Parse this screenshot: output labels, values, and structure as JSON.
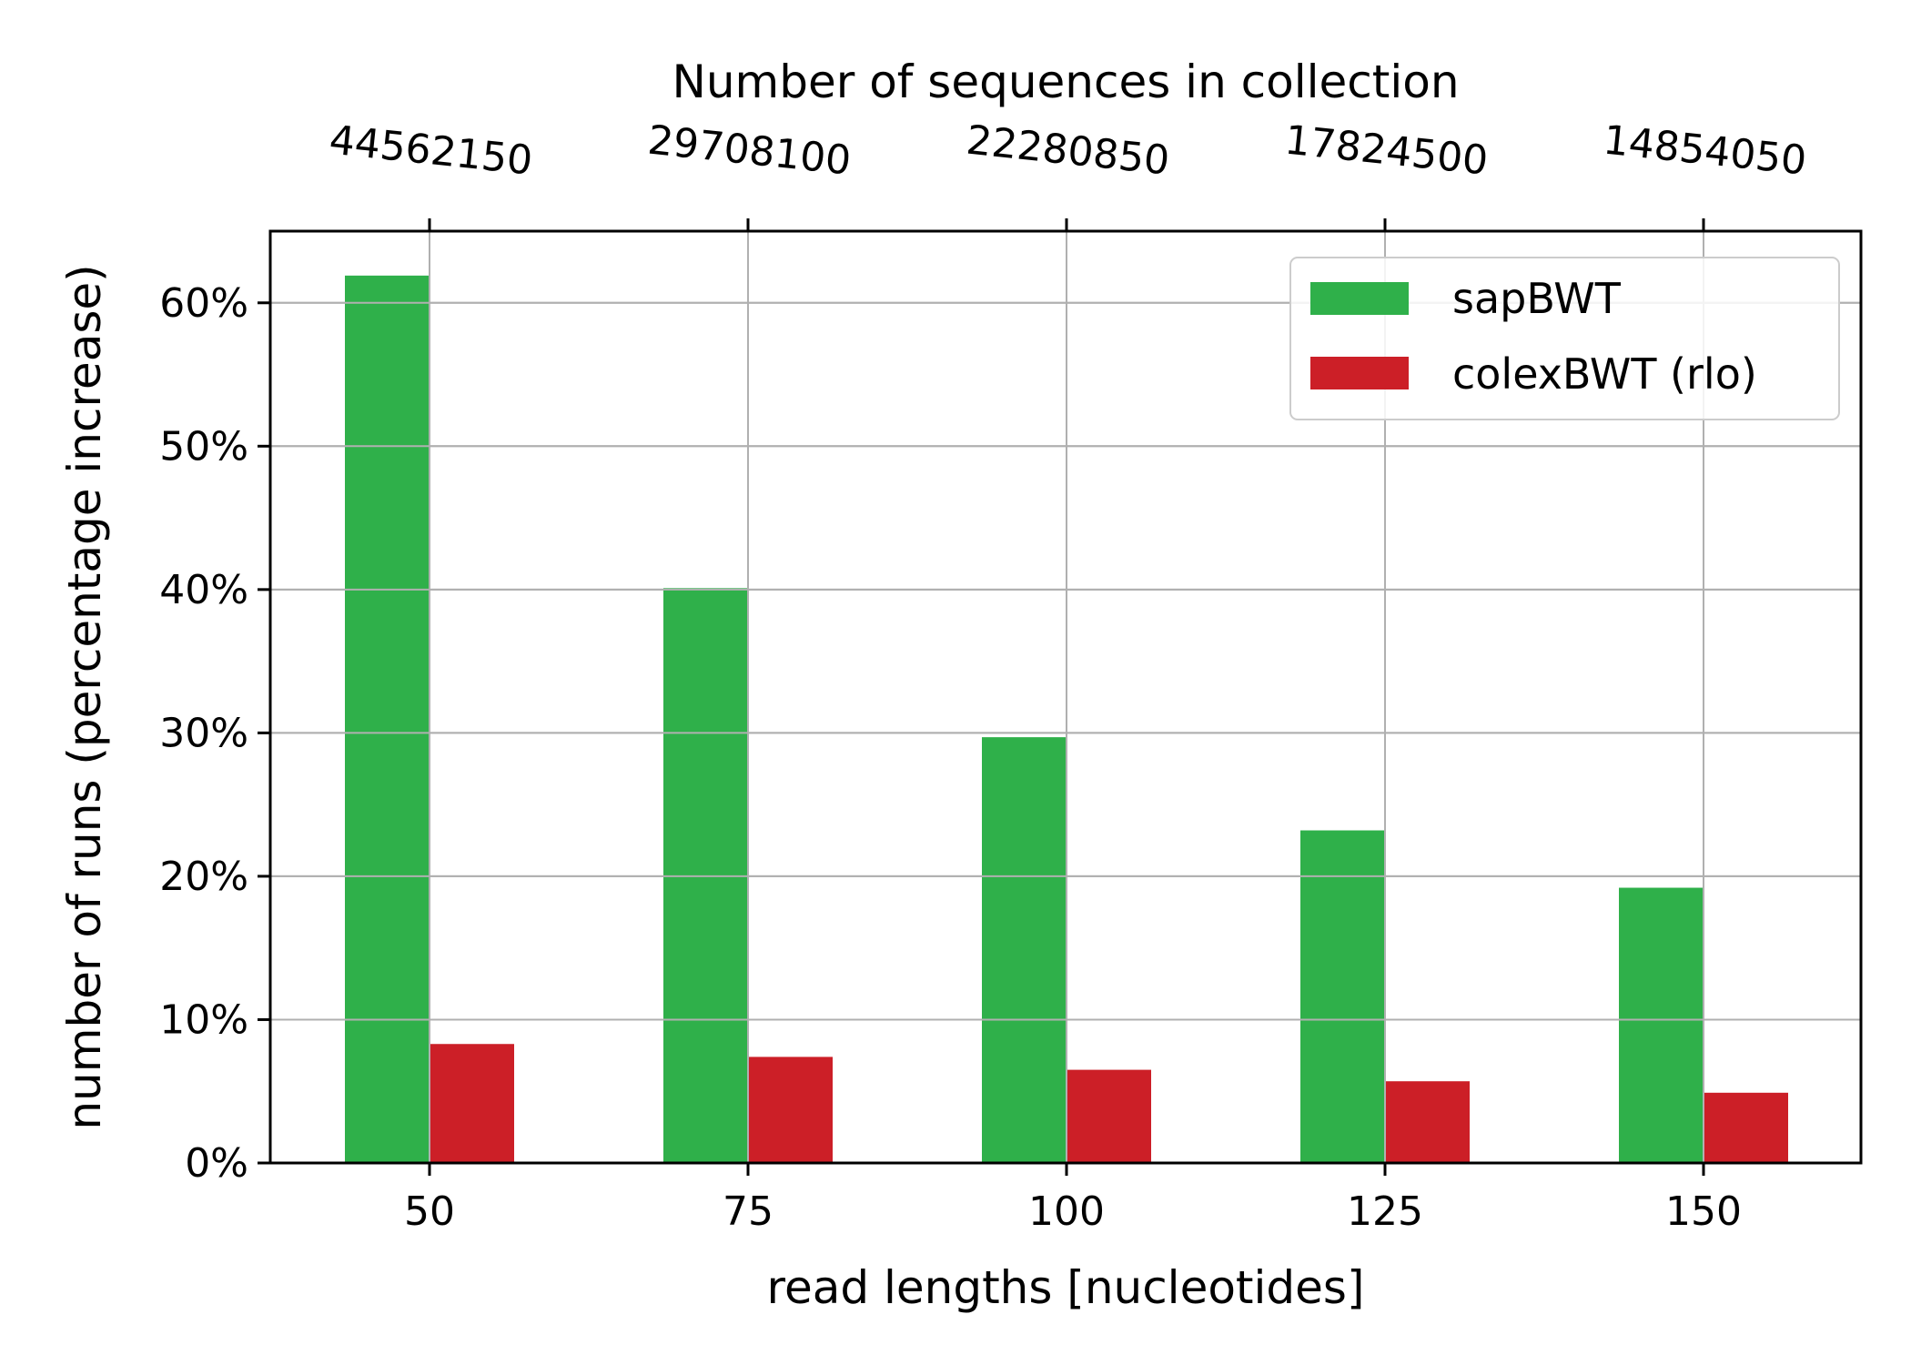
{
  "chart_data": {
    "type": "bar",
    "categories": [
      "50",
      "75",
      "100",
      "125",
      "150"
    ],
    "top_axis_labels": [
      "44562150",
      "29708100",
      "22280850",
      "17824500",
      "14854050"
    ],
    "top_axis_title": "Number of sequences in collection",
    "xlabel": "read lengths [nucleotides]",
    "ylabel": "number of runs (percentage increase)",
    "ylim": [
      0,
      65
    ],
    "yticks": [
      0,
      10,
      20,
      30,
      40,
      50,
      60
    ],
    "ytick_suffix": "%",
    "grid": true,
    "legend_position": "top-right",
    "series": [
      {
        "name": "sapBWT",
        "color": "#2fb04a",
        "values": [
          61.9,
          40.1,
          29.7,
          23.2,
          19.2
        ]
      },
      {
        "name": "colexBWT (rlo)",
        "color": "#cc1f27",
        "values": [
          8.3,
          7.4,
          6.5,
          5.7,
          4.9
        ]
      }
    ]
  }
}
